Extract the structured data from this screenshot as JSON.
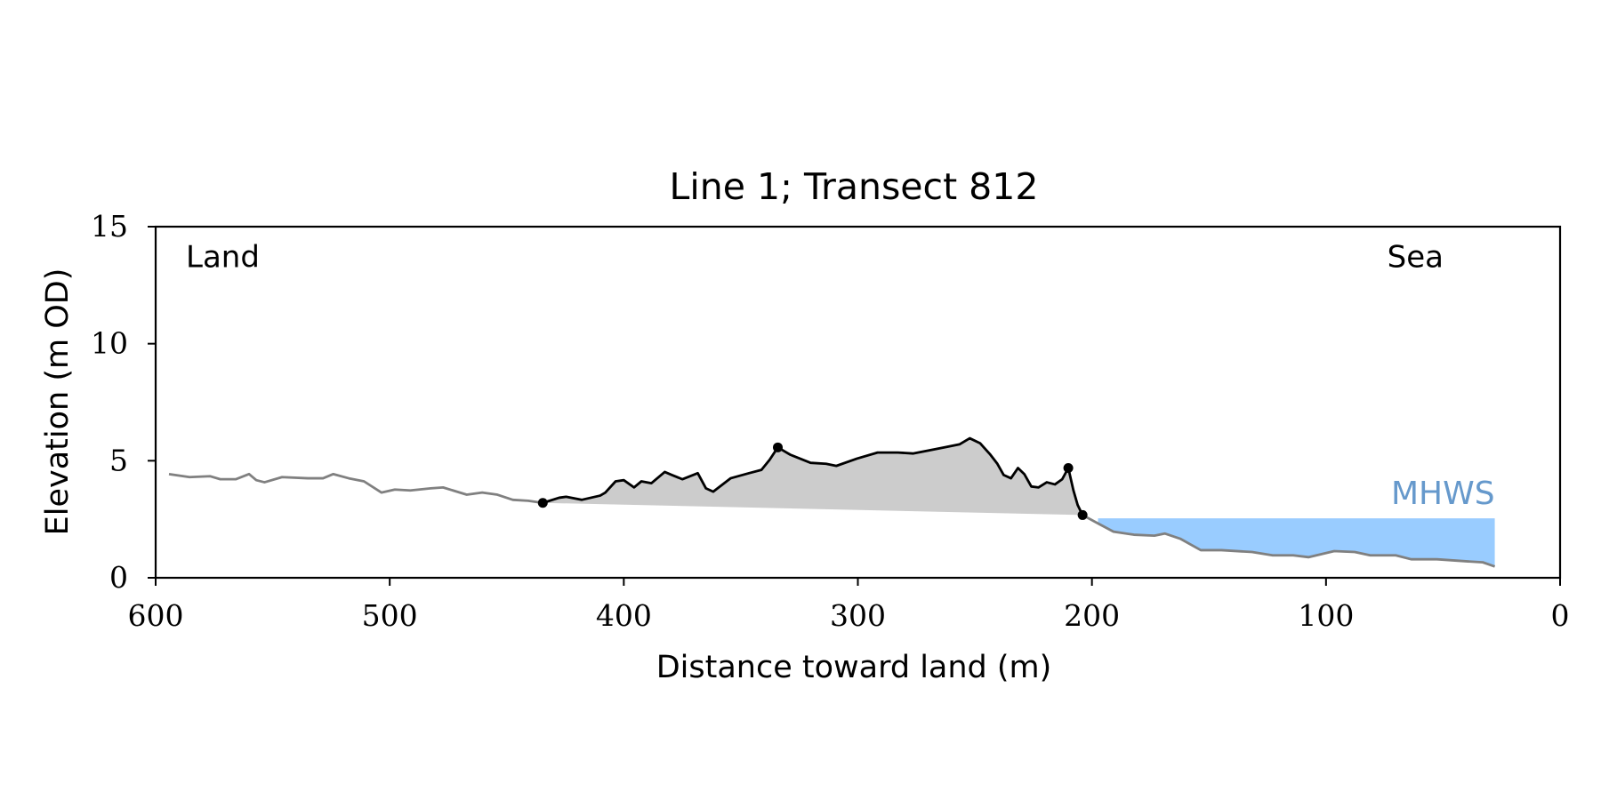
{
  "chart_data": {
    "type": "line",
    "title": "Line 1; Transect 812",
    "xlabel": "Distance toward land (m)",
    "ylabel": "Elevation (m OD)",
    "annotations": [
      "Land",
      "Sea"
    ],
    "xlim": [
      600,
      0
    ],
    "xticks": [
      600,
      500,
      400,
      300,
      200,
      100,
      0
    ],
    "ylim": [
      0,
      15
    ],
    "yticks": [
      0,
      5,
      10,
      15
    ],
    "series": [
      {
        "color": "#808080",
        "x": [
          594.3,
          585.5,
          576.8,
          572.4,
          565.8,
          560.1,
          557,
          553.5,
          546,
          535,
          528.5,
          524.1,
          517.5,
          511,
          503.5,
          497.8,
          491.2,
          482.5,
          477.2,
          467.1,
          460.5,
          454,
          447.4,
          440.8,
          434.6
        ],
        "values": [
          4.43,
          4.3,
          4.34,
          4.21,
          4.21,
          4.43,
          4.17,
          4.08,
          4.3,
          4.25,
          4.25,
          4.43,
          4.25,
          4.12,
          3.64,
          3.77,
          3.73,
          3.82,
          3.86,
          3.55,
          3.64,
          3.55,
          3.33,
          3.29,
          3.2
        ]
      },
      {
        "color": "#000000",
        "fill": "#cccccc",
        "x": [
          434.6,
          427.6,
          424.6,
          418,
          410.1,
          407.9,
          403.5,
          400,
          395.6,
          392.5,
          388.2,
          382.5,
          379.4,
          375,
          368.4,
          364.9,
          361.8,
          354.4,
          346.5,
          341.2,
          337.7,
          334.2,
          328.9,
          320.2,
          313.6,
          309.2,
          300.4,
          291.6,
          282.9,
          276.3,
          269.7,
          263.2,
          256.6,
          252.2,
          247.8,
          243.4,
          240.4,
          237.7,
          234.6,
          231.6,
          228.9,
          225.9,
          222.8,
          219.3,
          215.8,
          212.7,
          210.1,
          207.9,
          206.1,
          204
        ],
        "values": [
          3.2,
          3.42,
          3.46,
          3.33,
          3.51,
          3.64,
          4.12,
          4.17,
          3.86,
          4.12,
          4.04,
          4.52,
          4.39,
          4.21,
          4.47,
          3.82,
          3.68,
          4.25,
          4.47,
          4.61,
          5.04,
          5.57,
          5.26,
          4.91,
          4.87,
          4.78,
          5.09,
          5.35,
          5.35,
          5.31,
          5.44,
          5.57,
          5.7,
          5.96,
          5.75,
          5.26,
          4.87,
          4.39,
          4.25,
          4.69,
          4.43,
          3.9,
          3.86,
          4.08,
          3.99,
          4.21,
          4.69,
          3.73,
          3.11,
          2.68
        ]
      },
      {
        "color": "#808080",
        "x": [
          204,
          197.4,
          190.8,
          182.1,
          173.3,
          168.9,
          162.3,
          153.5,
          144.7,
          131.6,
          122.8,
          114,
          107.5,
          96.5,
          87.7,
          81.1,
          70.2,
          63.6,
          52.6,
          39.5,
          33,
          27.9
        ],
        "values": [
          2.68,
          2.32,
          1.97,
          1.84,
          1.8,
          1.89,
          1.67,
          1.18,
          1.18,
          1.1,
          0.96,
          0.96,
          0.88,
          1.14,
          1.1,
          0.96,
          0.96,
          0.79,
          0.79,
          0.7,
          0.66,
          0.48
        ]
      }
    ],
    "markers": {
      "color": "#000000",
      "x": [
        434.6,
        334.2,
        210.1,
        204
      ],
      "values": [
        3.2,
        5.57,
        4.69,
        2.68
      ]
    },
    "mhws": {
      "label": "MHWS",
      "value": 2.54,
      "x": [
        197.4,
        27.9
      ],
      "color": "#99ccff",
      "label_color": "#6699cc"
    }
  }
}
